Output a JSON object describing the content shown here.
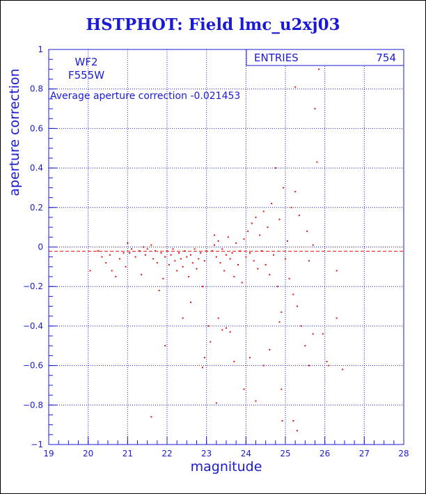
{
  "chart_data": {
    "type": "scatter",
    "title": "HSTPHOT: Field lmc_u2xj03",
    "xlabel": "magnitude",
    "ylabel": "aperture correction",
    "xlim": [
      19,
      28
    ],
    "ylim": [
      -1,
      1
    ],
    "xticks": [
      "19",
      "20",
      "21",
      "22",
      "23",
      "24",
      "25",
      "26",
      "27",
      "28"
    ],
    "yticks": [
      "-1",
      "-0.8",
      "-0.6",
      "-0.4",
      "-0.2",
      "0",
      "0.2",
      "0.4",
      "0.6",
      "0.8",
      "1"
    ],
    "grid": true,
    "stats_box": {
      "label": "ENTRIES",
      "value": "754"
    },
    "annotations": {
      "camera": "WF2",
      "filter": "F555W",
      "average_text": "Average aperture correction -0.021453"
    },
    "average_line": -0.021453,
    "point_color": "#dd1111",
    "axis_color": "#1a1ad4",
    "points": [
      [
        20.05,
        -0.12
      ],
      [
        20.25,
        -0.02
      ],
      [
        20.35,
        -0.05
      ],
      [
        20.45,
        -0.08
      ],
      [
        20.55,
        -0.04
      ],
      [
        20.6,
        -0.12
      ],
      [
        20.7,
        -0.15
      ],
      [
        20.8,
        -0.06
      ],
      [
        20.9,
        -0.03
      ],
      [
        20.95,
        -0.1
      ],
      [
        21.0,
        0.02
      ],
      [
        21.05,
        -0.03
      ],
      [
        21.1,
        -0.01
      ],
      [
        21.2,
        -0.05
      ],
      [
        21.3,
        -0.02
      ],
      [
        21.35,
        -0.14
      ],
      [
        21.4,
        0.0
      ],
      [
        21.45,
        -0.04
      ],
      [
        21.5,
        -0.01
      ],
      [
        21.6,
        0.01
      ],
      [
        21.65,
        -0.06
      ],
      [
        21.7,
        -0.02
      ],
      [
        21.75,
        -0.08
      ],
      [
        21.8,
        -0.22
      ],
      [
        21.85,
        -0.03
      ],
      [
        21.9,
        -0.16
      ],
      [
        21.95,
        -0.5
      ],
      [
        21.6,
        -0.86
      ],
      [
        21.95,
        -0.05
      ],
      [
        22.0,
        -0.02
      ],
      [
        22.05,
        -0.09
      ],
      [
        22.1,
        -0.04
      ],
      [
        22.15,
        -0.01
      ],
      [
        22.2,
        -0.07
      ],
      [
        22.25,
        -0.12
      ],
      [
        22.3,
        -0.03
      ],
      [
        22.35,
        -0.06
      ],
      [
        22.4,
        -0.1
      ],
      [
        22.45,
        -0.02
      ],
      [
        22.5,
        -0.05
      ],
      [
        22.55,
        -0.15
      ],
      [
        22.6,
        -0.04
      ],
      [
        22.65,
        -0.08
      ],
      [
        22.7,
        -0.01
      ],
      [
        22.75,
        -0.11
      ],
      [
        22.8,
        -0.06
      ],
      [
        22.85,
        -0.03
      ],
      [
        22.9,
        -0.2
      ],
      [
        22.95,
        -0.07
      ],
      [
        23.0,
        -0.02
      ],
      [
        22.4,
        -0.36
      ],
      [
        22.6,
        -0.28
      ],
      [
        22.9,
        -0.61
      ],
      [
        22.95,
        -0.56
      ],
      [
        23.05,
        -0.4
      ],
      [
        23.1,
        -0.48
      ],
      [
        23.15,
        -0.02
      ],
      [
        23.2,
        0.01
      ],
      [
        23.25,
        -0.05
      ],
      [
        23.3,
        0.03
      ],
      [
        23.35,
        -0.08
      ],
      [
        23.4,
        -0.01
      ],
      [
        23.45,
        -0.12
      ],
      [
        23.5,
        -0.04
      ],
      [
        23.55,
        0.05
      ],
      [
        23.6,
        -0.06
      ],
      [
        23.65,
        -0.03
      ],
      [
        23.7,
        -0.15
      ],
      [
        23.75,
        0.02
      ],
      [
        23.8,
        -0.09
      ],
      [
        23.85,
        -0.02
      ],
      [
        23.9,
        -0.18
      ],
      [
        23.95,
        0.04
      ],
      [
        23.2,
        0.06
      ],
      [
        23.3,
        -0.36
      ],
      [
        23.4,
        -0.42
      ],
      [
        23.5,
        -0.41
      ],
      [
        23.6,
        -0.43
      ],
      [
        23.7,
        -0.58
      ],
      [
        23.25,
        -0.79
      ],
      [
        23.95,
        -0.72
      ],
      [
        24.0,
        -0.05
      ],
      [
        24.05,
        0.08
      ],
      [
        24.1,
        -0.03
      ],
      [
        24.15,
        0.12
      ],
      [
        24.2,
        -0.07
      ],
      [
        24.25,
        0.15
      ],
      [
        24.3,
        -0.11
      ],
      [
        24.35,
        0.06
      ],
      [
        24.4,
        -0.02
      ],
      [
        24.45,
        0.18
      ],
      [
        24.5,
        -0.09
      ],
      [
        24.55,
        0.1
      ],
      [
        24.6,
        -0.14
      ],
      [
        24.65,
        0.22
      ],
      [
        24.7,
        -0.04
      ],
      [
        24.75,
        0.4
      ],
      [
        24.8,
        -0.2
      ],
      [
        24.85,
        0.14
      ],
      [
        24.9,
        -0.33
      ],
      [
        24.95,
        0.3
      ],
      [
        24.1,
        -0.56
      ],
      [
        24.25,
        -0.78
      ],
      [
        24.45,
        -0.6
      ],
      [
        24.6,
        -0.52
      ],
      [
        24.85,
        -0.38
      ],
      [
        24.9,
        -0.72
      ],
      [
        24.92,
        -0.88
      ],
      [
        25.0,
        -0.06
      ],
      [
        25.05,
        0.03
      ],
      [
        25.1,
        -0.16
      ],
      [
        25.15,
        0.2
      ],
      [
        25.2,
        -0.24
      ],
      [
        25.25,
        0.28
      ],
      [
        25.3,
        -0.3
      ],
      [
        25.35,
        0.16
      ],
      [
        25.2,
        -0.88
      ],
      [
        25.3,
        -0.93
      ],
      [
        25.25,
        0.81
      ],
      [
        25.75,
        0.7
      ],
      [
        25.85,
        0.9
      ],
      [
        25.8,
        0.43
      ],
      [
        25.5,
        -0.5
      ],
      [
        25.6,
        -0.6
      ],
      [
        25.7,
        -0.44
      ],
      [
        25.95,
        -0.44
      ],
      [
        26.1,
        -0.6
      ],
      [
        26.3,
        -0.36
      ],
      [
        26.45,
        -0.62
      ],
      [
        26.3,
        -0.12
      ],
      [
        26.05,
        -0.58
      ],
      [
        25.55,
        0.08
      ],
      [
        25.6,
        -0.07
      ],
      [
        25.7,
        0.01
      ],
      [
        25.4,
        -0.4
      ]
    ]
  }
}
